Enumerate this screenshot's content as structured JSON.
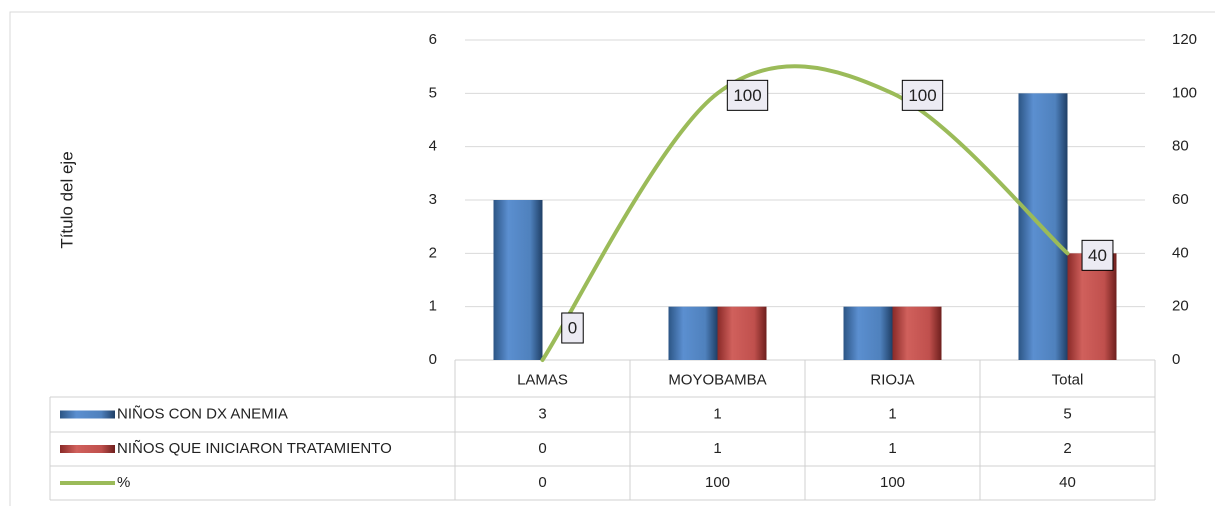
{
  "chart_data": {
    "type": "bar",
    "y_axis_label": "Título del eje",
    "categories": [
      "LAMAS",
      "MOYOBAMBA",
      "RIOJA",
      "Total"
    ],
    "series": [
      {
        "name": "NIÑOS CON DX ANEMIA",
        "color": "#4f81bd",
        "values": [
          3,
          1,
          1,
          5
        ]
      },
      {
        "name": "NIÑOS QUE INICIARON TRATAMIENTO",
        "color": "#c0504d",
        "values": [
          0,
          1,
          1,
          2
        ]
      },
      {
        "name": "%",
        "color": "#9bbb59",
        "type": "line",
        "axis": "y2",
        "values": [
          0,
          100,
          100,
          40
        ]
      }
    ],
    "ylim": [
      0,
      6
    ],
    "yticks": [
      0,
      1,
      2,
      3,
      4,
      5,
      6
    ],
    "y2lim": [
      0,
      120
    ],
    "y2ticks": [
      0,
      20,
      40,
      60,
      80,
      100,
      120
    ],
    "grid": true,
    "data_table": true
  }
}
